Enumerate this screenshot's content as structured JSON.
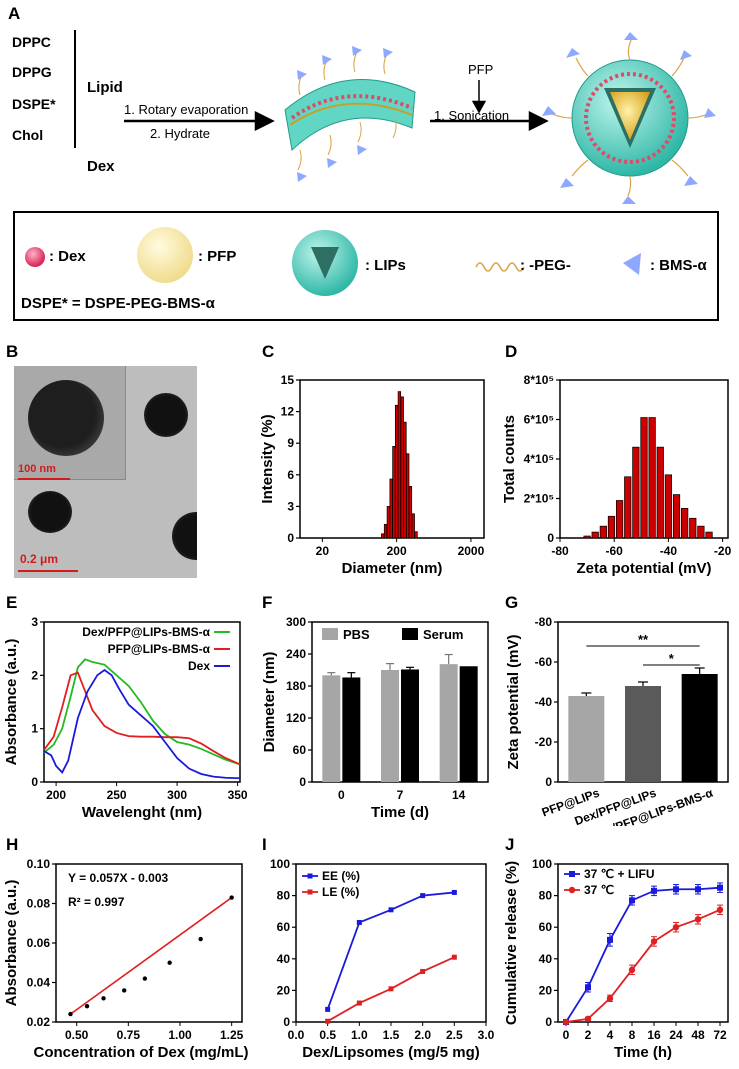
{
  "panel_labels": {
    "A": "A",
    "B": "B",
    "C": "C",
    "D": "D",
    "E": "E",
    "F": "F",
    "G": "G",
    "H": "H",
    "I": "I",
    "J": "J"
  },
  "schematic": {
    "components": [
      "DPPC",
      "DPPG",
      "DSPE*",
      "Chol"
    ],
    "lipid_label": "Lipid",
    "dex_label": "Dex",
    "step1": "1. Rotary evaporation",
    "step2": "2. Hydrate",
    "pfp_label": "PFP",
    "sonication": "1. Sonication"
  },
  "legend": {
    "dex": ": Dex",
    "pfp": ": PFP",
    "lips": ": LIPs",
    "peg": ": -PEG-",
    "bms": ": BMS-α",
    "dspe_def": "DSPE* = DSPE-PEG-BMS-α"
  },
  "tem": {
    "inset_scale": "100 nm",
    "main_scale": "0.2 μm"
  },
  "colors": {
    "red_bar": "#cc0000",
    "green": "#22bb22",
    "blue": "#1a1adc",
    "red": "#e02020",
    "gray_light": "#a6a6a6",
    "gray_dark": "#5a5a5a",
    "black": "#000000"
  },
  "chart_data": [
    {
      "panel": "C",
      "type": "bar",
      "title": "",
      "xlabel": "Diameter (nm)",
      "ylabel": "Intensity (%)",
      "x_scale": "log",
      "xlim": [
        10,
        3000
      ],
      "ylim": [
        0,
        15
      ],
      "x_ticks": [
        "20",
        "200",
        "2000"
      ],
      "y_ticks": [
        "0",
        "3",
        "6",
        "9",
        "12",
        "15"
      ],
      "x": [
        130,
        142,
        155,
        169,
        184,
        200,
        218,
        238,
        259,
        282,
        307,
        335,
        365
      ],
      "values": [
        0.4,
        1.3,
        3.0,
        5.6,
        8.7,
        12.6,
        13.9,
        13.4,
        11.0,
        8.0,
        4.9,
        2.3,
        0.6
      ]
    },
    {
      "panel": "D",
      "type": "bar",
      "xlabel": "Zeta potential (mV)",
      "ylabel": "Total counts",
      "xlim": [
        -80,
        -18
      ],
      "ylim": [
        0,
        800000
      ],
      "x_ticks": [
        "-80",
        "-60",
        "-40",
        "-20"
      ],
      "y_ticks": [
        "0",
        "2*10⁵",
        "4*10⁵",
        "6*10⁵",
        "8*10⁵"
      ],
      "x": [
        -70,
        -67,
        -64,
        -61,
        -58,
        -55,
        -52,
        -49,
        -46,
        -43,
        -40,
        -37,
        -34,
        -31,
        -28,
        -25
      ],
      "values": [
        10000,
        30000,
        60000,
        110000,
        190000,
        310000,
        460000,
        610000,
        610000,
        460000,
        320000,
        220000,
        150000,
        100000,
        60000,
        30000
      ]
    },
    {
      "panel": "E",
      "type": "line",
      "xlabel": "Wavelenght (nm)",
      "ylabel": "Absorbance (a.u.)",
      "xlim": [
        190,
        352
      ],
      "ylim": [
        0,
        3
      ],
      "x_ticks": [
        "200",
        "250",
        "300",
        "350"
      ],
      "y_ticks": [
        "0",
        "1",
        "2",
        "3"
      ],
      "series": [
        {
          "name": "Dex/PFP@LIPs-BMS-α",
          "color": "#22bb22",
          "x": [
            190,
            198,
            205,
            212,
            218,
            224,
            230,
            240,
            250,
            260,
            270,
            280,
            290,
            300,
            310,
            320,
            330,
            340,
            352
          ],
          "y": [
            0.55,
            0.7,
            1.0,
            1.6,
            2.15,
            2.3,
            2.25,
            2.2,
            2.0,
            1.8,
            1.5,
            1.15,
            0.9,
            0.75,
            0.7,
            0.62,
            0.52,
            0.42,
            0.33
          ]
        },
        {
          "name": "PFP@LIPs-BMS-α",
          "color": "#e02020",
          "x": [
            190,
            198,
            205,
            212,
            218,
            224,
            230,
            240,
            250,
            260,
            270,
            280,
            290,
            300,
            310,
            320,
            330,
            340,
            352
          ],
          "y": [
            0.6,
            0.85,
            1.4,
            2.0,
            2.05,
            1.7,
            1.35,
            1.05,
            0.92,
            0.86,
            0.85,
            0.85,
            0.84,
            0.84,
            0.82,
            0.72,
            0.58,
            0.45,
            0.33
          ]
        },
        {
          "name": "Dex",
          "color": "#1a1adc",
          "x": [
            190,
            196,
            200,
            205,
            210,
            218,
            226,
            234,
            240,
            246,
            252,
            260,
            270,
            280,
            290,
            300,
            310,
            320,
            330,
            340,
            352
          ],
          "y": [
            0.58,
            0.5,
            0.3,
            0.18,
            0.4,
            1.2,
            1.7,
            2.0,
            2.1,
            2.0,
            1.75,
            1.45,
            1.25,
            1.05,
            0.75,
            0.45,
            0.25,
            0.15,
            0.1,
            0.08,
            0.07
          ]
        }
      ]
    },
    {
      "panel": "F",
      "type": "bar",
      "xlabel": "Time (d)",
      "ylabel": "Diameter (nm)",
      "ylim": [
        0,
        300
      ],
      "categories": [
        "0",
        "7",
        "14"
      ],
      "y_ticks": [
        "0",
        "60",
        "120",
        "180",
        "240",
        "300"
      ],
      "series": [
        {
          "name": "PBS",
          "color": "#a6a6a6",
          "values": [
            200,
            210,
            221
          ],
          "errors": [
            5,
            12,
            18
          ]
        },
        {
          "name": "Serum",
          "color": "#000000",
          "values": [
            196,
            211,
            217
          ],
          "errors": [
            9,
            4,
            0
          ]
        }
      ]
    },
    {
      "panel": "G",
      "type": "bar",
      "ylabel": "Zeta potential (mV)",
      "ylim": [
        0,
        -80
      ],
      "categories": [
        "PFP@LIPs",
        "Dex/PFP@LIPs",
        "Dex/PFP@LIPs-BMS-α"
      ],
      "y_ticks": [
        "0",
        "-20",
        "-40",
        "-60",
        "-80"
      ],
      "values": [
        -43,
        -48,
        -54
      ],
      "errors": [
        1.5,
        2,
        3
      ],
      "colors": [
        "#a6a6a6",
        "#5a5a5a",
        "#000000"
      ],
      "annotations": [
        {
          "text": "**",
          "between": [
            1,
            3
          ]
        },
        {
          "text": "*",
          "between": [
            2,
            3
          ]
        }
      ]
    },
    {
      "panel": "H",
      "type": "scatter",
      "xlabel": "Concentration of Dex (mg/mL)",
      "ylabel": "Absorbance (a.u.)",
      "xlim": [
        0.4,
        1.3
      ],
      "ylim": [
        0.02,
        0.1
      ],
      "x_ticks": [
        "0.50",
        "0.75",
        "1.00",
        "1.25"
      ],
      "y_ticks": [
        "0.02",
        "0.04",
        "0.06",
        "0.08",
        "0.10"
      ],
      "x": [
        0.47,
        0.55,
        0.63,
        0.73,
        0.83,
        0.95,
        1.1,
        1.25
      ],
      "y": [
        0.024,
        0.028,
        0.032,
        0.036,
        0.042,
        0.05,
        0.062,
        0.083
      ],
      "equation": "Y = 0.057X - 0.003",
      "r2": "R² = 0.997"
    },
    {
      "panel": "I",
      "type": "line",
      "xlabel": "Dex/Lipsomes (mg/5 mg)",
      "ylabel": "",
      "xlim": [
        0,
        3
      ],
      "ylim": [
        0,
        100
      ],
      "x_ticks": [
        "0.0",
        "0.5",
        "1.0",
        "1.5",
        "2.0",
        "2.5",
        "3.0"
      ],
      "y_ticks": [
        "0",
        "20",
        "40",
        "60",
        "80",
        "100"
      ],
      "series": [
        {
          "name": "EE (%)",
          "color": "#1a1adc",
          "x": [
            0.5,
            1.0,
            1.5,
            2.0,
            2.5
          ],
          "y": [
            8,
            63,
            71,
            80,
            82
          ]
        },
        {
          "name": "LE (%)",
          "color": "#e02020",
          "x": [
            0.5,
            1.0,
            1.5,
            2.0,
            2.5
          ],
          "y": [
            0.5,
            12,
            21,
            32,
            41
          ]
        }
      ]
    },
    {
      "panel": "J",
      "type": "line",
      "xlabel": "Time (h)",
      "ylabel": "Cumulative release (%)",
      "ylim": [
        0,
        100
      ],
      "categories": [
        "0",
        "2",
        "4",
        "8",
        "16",
        "24",
        "48",
        "72"
      ],
      "y_ticks": [
        "0",
        "20",
        "40",
        "60",
        "80",
        "100"
      ],
      "series": [
        {
          "name": "37 ℃ + LIFU",
          "color": "#1a1adc",
          "values": [
            0,
            22,
            52,
            77,
            83,
            84,
            84,
            85
          ],
          "errors": [
            0,
            3,
            4,
            3,
            3,
            3,
            3,
            3
          ]
        },
        {
          "name": "37 ℃",
          "color": "#e02020",
          "values": [
            0,
            2,
            15,
            33,
            51,
            60,
            65,
            71
          ],
          "errors": [
            0,
            1,
            2,
            3,
            3,
            3,
            3,
            3
          ]
        }
      ]
    }
  ]
}
